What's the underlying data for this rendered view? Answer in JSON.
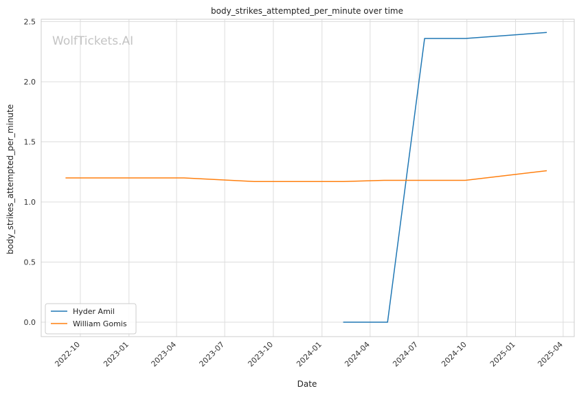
{
  "chart_data": {
    "type": "line",
    "title": "body_strikes_attempted_per_minute over time",
    "xlabel": "Date",
    "ylabel": "body_strikes_attempted_per_minute",
    "watermark": "WolfTickets.AI",
    "xlim": [
      "2022-07-19",
      "2025-04-22"
    ],
    "ylim": [
      -0.12,
      2.52
    ],
    "x_ticks": [
      "2022-10",
      "2023-01",
      "2023-04",
      "2023-07",
      "2023-10",
      "2024-01",
      "2024-04",
      "2024-07",
      "2024-10",
      "2025-01",
      "2025-04"
    ],
    "y_ticks": [
      0.0,
      0.5,
      1.0,
      1.5,
      2.0,
      2.5
    ],
    "y_tick_labels": [
      "0.0",
      "0.5",
      "1.0",
      "1.5",
      "2.0",
      "2.5"
    ],
    "grid": true,
    "legend_position": "lower-left",
    "series": [
      {
        "name": "Hyder Amil",
        "color": "#1f77b4",
        "x": [
          "2024-02-10",
          "2024-05-04",
          "2024-07-13",
          "2024-09-28",
          "2025-03-01"
        ],
        "y": [
          0.0,
          0.0,
          2.36,
          2.36,
          2.41
        ]
      },
      {
        "name": "William Gomis",
        "color": "#ff7f0e",
        "x": [
          "2022-09-03",
          "2023-04-15",
          "2023-08-26",
          "2024-02-10",
          "2024-04-27",
          "2024-09-28",
          "2025-03-01"
        ],
        "y": [
          1.2,
          1.2,
          1.17,
          1.17,
          1.18,
          1.18,
          1.26
        ]
      }
    ]
  }
}
